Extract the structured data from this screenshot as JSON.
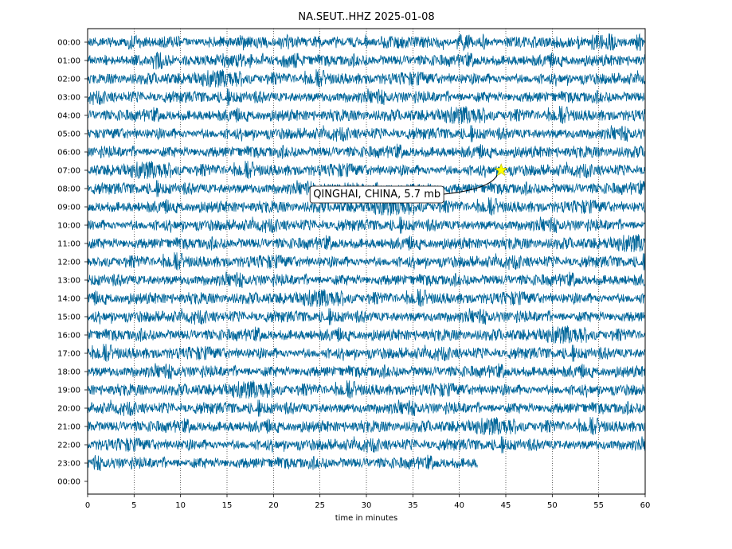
{
  "chart_data": {
    "type": "line",
    "title": "NA.SEUT..HHZ 2025-01-08",
    "xlabel": "time in minutes",
    "ylabel": "",
    "xlim": [
      0,
      60
    ],
    "x_ticks": [
      0,
      5,
      10,
      15,
      20,
      25,
      30,
      35,
      40,
      45,
      50,
      55,
      60
    ],
    "y_tick_labels": [
      "00:00",
      "01:00",
      "02:00",
      "03:00",
      "04:00",
      "05:00",
      "06:00",
      "07:00",
      "08:00",
      "09:00",
      "10:00",
      "11:00",
      "12:00",
      "13:00",
      "14:00",
      "15:00",
      "16:00",
      "17:00",
      "18:00",
      "19:00",
      "20:00",
      "21:00",
      "22:00",
      "23:00",
      "00:00"
    ],
    "grid": "vertical dotted at x ticks",
    "trace_color": "#00669a",
    "traces": [
      {
        "hour": "00:00",
        "end_minute": 60
      },
      {
        "hour": "01:00",
        "end_minute": 60
      },
      {
        "hour": "02:00",
        "end_minute": 60
      },
      {
        "hour": "03:00",
        "end_minute": 60
      },
      {
        "hour": "04:00",
        "end_minute": 60
      },
      {
        "hour": "05:00",
        "end_minute": 60
      },
      {
        "hour": "06:00",
        "end_minute": 60
      },
      {
        "hour": "07:00",
        "end_minute": 60
      },
      {
        "hour": "08:00",
        "end_minute": 60
      },
      {
        "hour": "09:00",
        "end_minute": 60
      },
      {
        "hour": "10:00",
        "end_minute": 60
      },
      {
        "hour": "11:00",
        "end_minute": 60
      },
      {
        "hour": "12:00",
        "end_minute": 60
      },
      {
        "hour": "13:00",
        "end_minute": 60
      },
      {
        "hour": "14:00",
        "end_minute": 60
      },
      {
        "hour": "15:00",
        "end_minute": 60
      },
      {
        "hour": "16:00",
        "end_minute": 60
      },
      {
        "hour": "17:00",
        "end_minute": 60
      },
      {
        "hour": "18:00",
        "end_minute": 60
      },
      {
        "hour": "19:00",
        "end_minute": 60
      },
      {
        "hour": "20:00",
        "end_minute": 60
      },
      {
        "hour": "21:00",
        "end_minute": 60
      },
      {
        "hour": "22:00",
        "end_minute": 60
      },
      {
        "hour": "23:00",
        "end_minute": 42
      }
    ],
    "event": {
      "label": "QINGHAI, CHINA, 5.7 mb",
      "hour": "07:00",
      "minute": 44.5,
      "marker_color": "#ffff00"
    }
  }
}
